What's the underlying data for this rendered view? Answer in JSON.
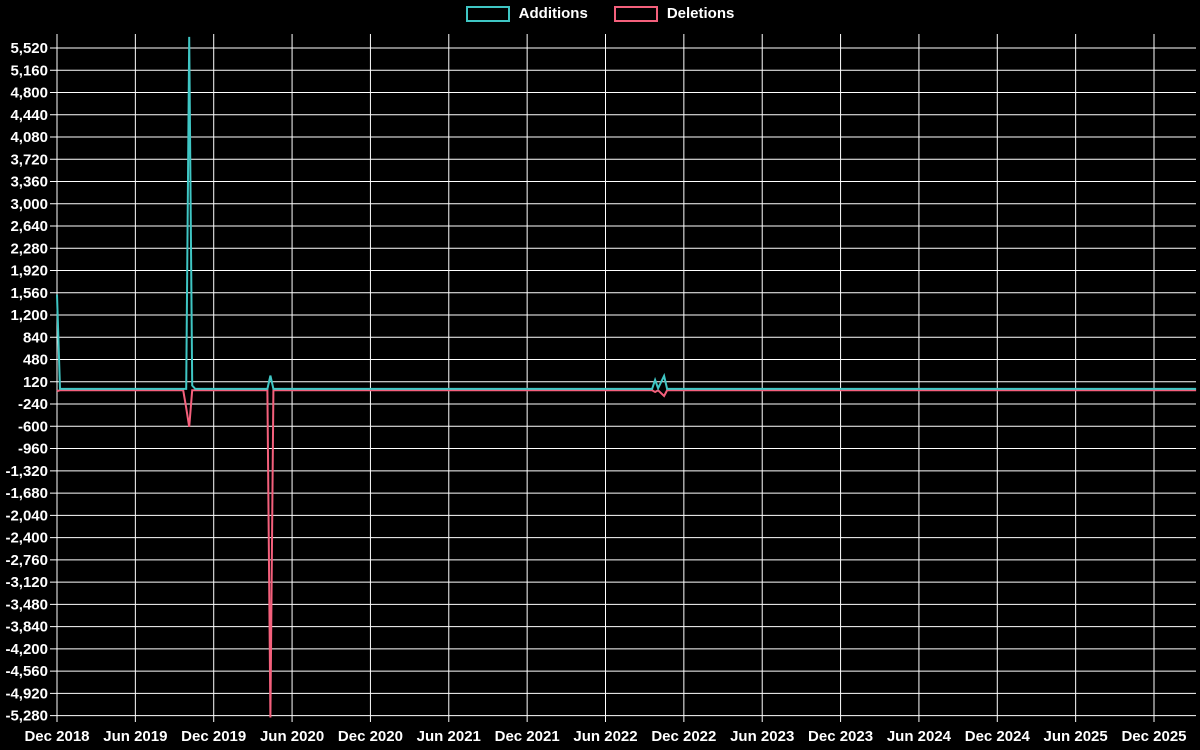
{
  "chart": {
    "background": "#000000",
    "grid_color": "#ffffff",
    "text_color": "#ffffff"
  },
  "legend": {
    "items": [
      {
        "label": "Additions",
        "color": "#3fc6c4"
      },
      {
        "label": "Deletions",
        "color": "#f4607c"
      }
    ]
  },
  "chart_data": {
    "type": "line",
    "title": "",
    "xlabel": "",
    "ylabel": "",
    "grid": true,
    "legend_position": "top-center",
    "x_tick_labels": [
      "Dec 2018",
      "Jun 2019",
      "Dec 2019",
      "Jun 2020",
      "Dec 2020",
      "Jun 2021",
      "Dec 2021",
      "Jun 2022",
      "Dec 2022",
      "Jun 2023",
      "Dec 2023",
      "Jun 2024",
      "Dec 2024",
      "Jun 2025",
      "Dec 2025"
    ],
    "y_ticks": [
      5520,
      5160,
      4800,
      4440,
      4080,
      3720,
      3360,
      3000,
      2640,
      2280,
      1920,
      1560,
      1200,
      840,
      480,
      120,
      -240,
      -600,
      -960,
      -1320,
      -1680,
      -2040,
      -2400,
      -2760,
      -3120,
      -3480,
      -3840,
      -4200,
      -4560,
      -4920,
      -5280
    ],
    "y_range": [
      -5310,
      5750
    ],
    "x_unit": "weeks since Dec 2018",
    "series": [
      {
        "name": "Deletions",
        "color": "#f4607c",
        "points": [
          [
            0,
            -30
          ],
          [
            1,
            -18
          ],
          [
            42,
            -18
          ],
          [
            43,
            -300
          ],
          [
            44,
            -610
          ],
          [
            45,
            -18
          ],
          [
            70,
            -18
          ],
          [
            71,
            -5310
          ],
          [
            72,
            -18
          ],
          [
            198,
            -18
          ],
          [
            199,
            -45
          ],
          [
            200,
            -18
          ],
          [
            202,
            -110
          ],
          [
            203,
            -18
          ],
          [
            379,
            -18
          ]
        ]
      },
      {
        "name": "Additions",
        "color": "#3fc6c4",
        "points": [
          [
            0,
            1530
          ],
          [
            1,
            5
          ],
          [
            43,
            5
          ],
          [
            44,
            5700
          ],
          [
            45,
            60
          ],
          [
            46,
            5
          ],
          [
            70,
            5
          ],
          [
            71,
            220
          ],
          [
            72,
            5
          ],
          [
            198,
            5
          ],
          [
            199,
            150
          ],
          [
            200,
            15
          ],
          [
            202,
            215
          ],
          [
            203,
            5
          ],
          [
            379,
            5
          ]
        ]
      }
    ],
    "notable_points": [
      {
        "x": "Dec 2018",
        "additions": 1530,
        "deletions": -30
      },
      {
        "x": "Oct-Nov 2019",
        "additions": 5700,
        "deletions": -610
      },
      {
        "x": "Apr-May 2020",
        "additions": 220,
        "deletions": -5310
      },
      {
        "x": "Nov-Dec 2022",
        "additions": [
          150,
          215
        ],
        "deletions": [
          -45,
          -110
        ]
      }
    ]
  }
}
